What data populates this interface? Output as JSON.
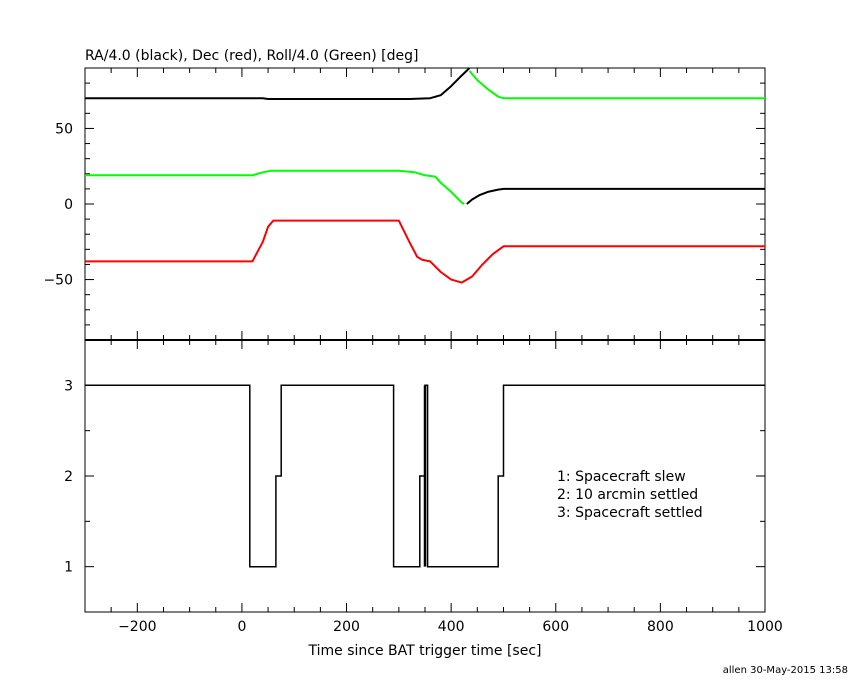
{
  "chart_data": [
    {
      "type": "line",
      "title": "RA/4.0 (black), Dec (red), Roll/4.0 (Green) [deg]",
      "xlim": [
        -300,
        1000
      ],
      "ylim": [
        -90,
        90
      ],
      "yticks": [
        -50,
        0,
        50
      ],
      "series": [
        {
          "color": "#000000",
          "segments": [
            {
              "x": [
                -300,
                40,
                50,
                320,
                360,
                380,
                400,
                420,
                435
              ],
              "y": [
                70,
                70,
                69.5,
                69.5,
                70,
                72,
                78,
                85,
                90
              ]
            },
            {
              "x": [
                430,
                440,
                455,
                470,
                490,
                500,
                1000
              ],
              "y": [
                0,
                3,
                6,
                8,
                9.5,
                10,
                10
              ]
            }
          ]
        },
        {
          "color": "#ff0000",
          "segments": [
            {
              "x": [
                -300,
                20,
                40,
                50,
                60,
                70,
                280,
                300,
                320,
                335,
                345,
                360,
                380,
                400,
                420,
                440,
                460,
                480,
                500,
                1000
              ],
              "y": [
                -38,
                -38,
                -25,
                -15,
                -11,
                -11,
                -11,
                -11,
                -25,
                -35,
                -37,
                -38,
                -45,
                -50,
                -52,
                -48,
                -40,
                -33,
                -28,
                -28
              ]
            }
          ]
        },
        {
          "color": "#00ff00",
          "segments": [
            {
              "x": [
                -300,
                20,
                40,
                55,
                300,
                330,
                350,
                370,
                380,
                400,
                420,
                425
              ],
              "y": [
                19,
                19,
                21,
                22,
                22,
                21,
                19,
                18,
                14,
                8,
                1,
                0
              ]
            },
            {
              "x": [
                435,
                450,
                470,
                490,
                500,
                1000
              ],
              "y": [
                88,
                82,
                76,
                71,
                70,
                70
              ]
            }
          ]
        }
      ]
    },
    {
      "type": "line",
      "xlabel": "Time since BAT trigger time [sec]",
      "xlim": [
        -300,
        1000
      ],
      "ylim": [
        0.5,
        3.5
      ],
      "yticks": [
        1,
        2,
        3
      ],
      "xticks": [
        -200,
        0,
        200,
        400,
        600,
        800,
        1000
      ],
      "series": [
        {
          "color": "#000000",
          "step_x": [
            -300,
            15,
            65,
            75,
            290,
            340,
            350,
            355,
            490,
            500,
            1000
          ],
          "step_y": [
            3,
            1,
            2,
            3,
            1,
            2,
            3,
            1,
            2,
            3,
            3
          ]
        }
      ],
      "legend": [
        "1: Spacecraft slew",
        "2: 10 arcmin settled",
        "3: Spacecraft settled"
      ]
    }
  ],
  "footer": "allen 30-May-2015 13:58"
}
